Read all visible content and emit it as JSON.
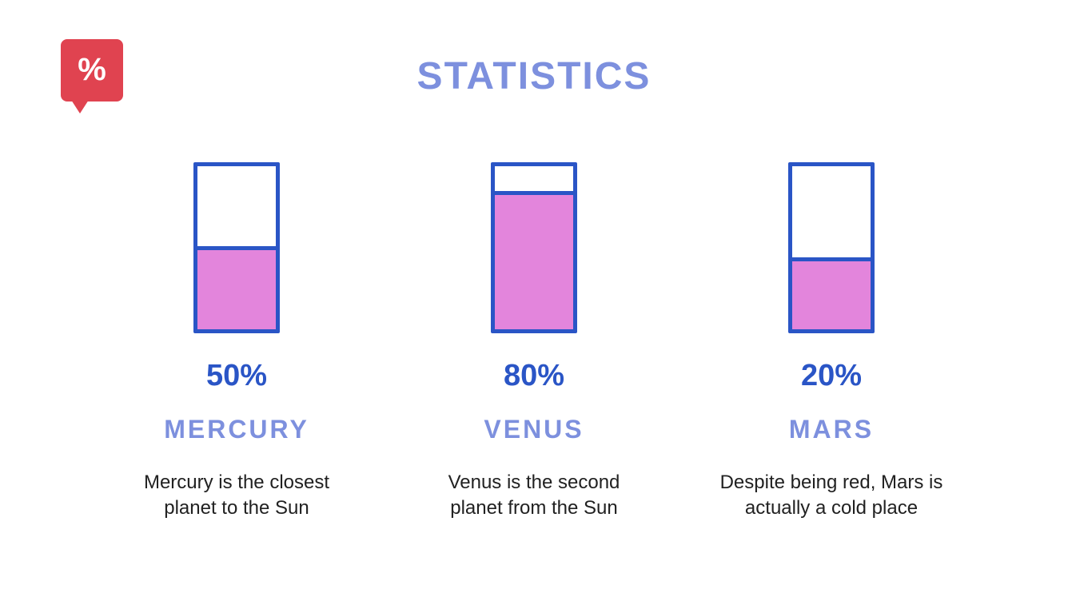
{
  "title": "STATISTICS",
  "badge": {
    "symbol": "%"
  },
  "colors": {
    "accent_blue": "#2A55C6",
    "periwinkle_blue": "#7D90DE",
    "pink_fill": "#E385DC",
    "badge_red": "#E04350",
    "body_text": "#212121",
    "background": "#FFFFFF"
  },
  "chart_data": {
    "type": "bar",
    "title": "STATISTICS",
    "categories": [
      "MERCURY",
      "VENUS",
      "MARS"
    ],
    "values": [
      50,
      80,
      20
    ],
    "value_labels": [
      "50%",
      "80%",
      "20%"
    ],
    "visual_fill_percents": [
      51,
      85,
      44
    ],
    "descriptions": [
      "Mercury is the closest planet to the Sun",
      "Venus is the second planet from the Sun",
      "Despite being red, Mars is actually a cold place"
    ],
    "ylim": [
      0,
      100
    ],
    "grid": false,
    "legend": false,
    "orientation": "vertical-fill-gauge"
  },
  "columns": [
    {
      "percent_label": "50%",
      "name": "MERCURY",
      "description_lines": [
        "Mercury is the closest",
        "planet to the Sun"
      ]
    },
    {
      "percent_label": "80%",
      "name": "VENUS",
      "description_lines": [
        "Venus is the second",
        "planet from the Sun"
      ]
    },
    {
      "percent_label": "20%",
      "name": "MARS",
      "description_lines": [
        "Despite being red, Mars is",
        "actually a cold place"
      ]
    }
  ]
}
